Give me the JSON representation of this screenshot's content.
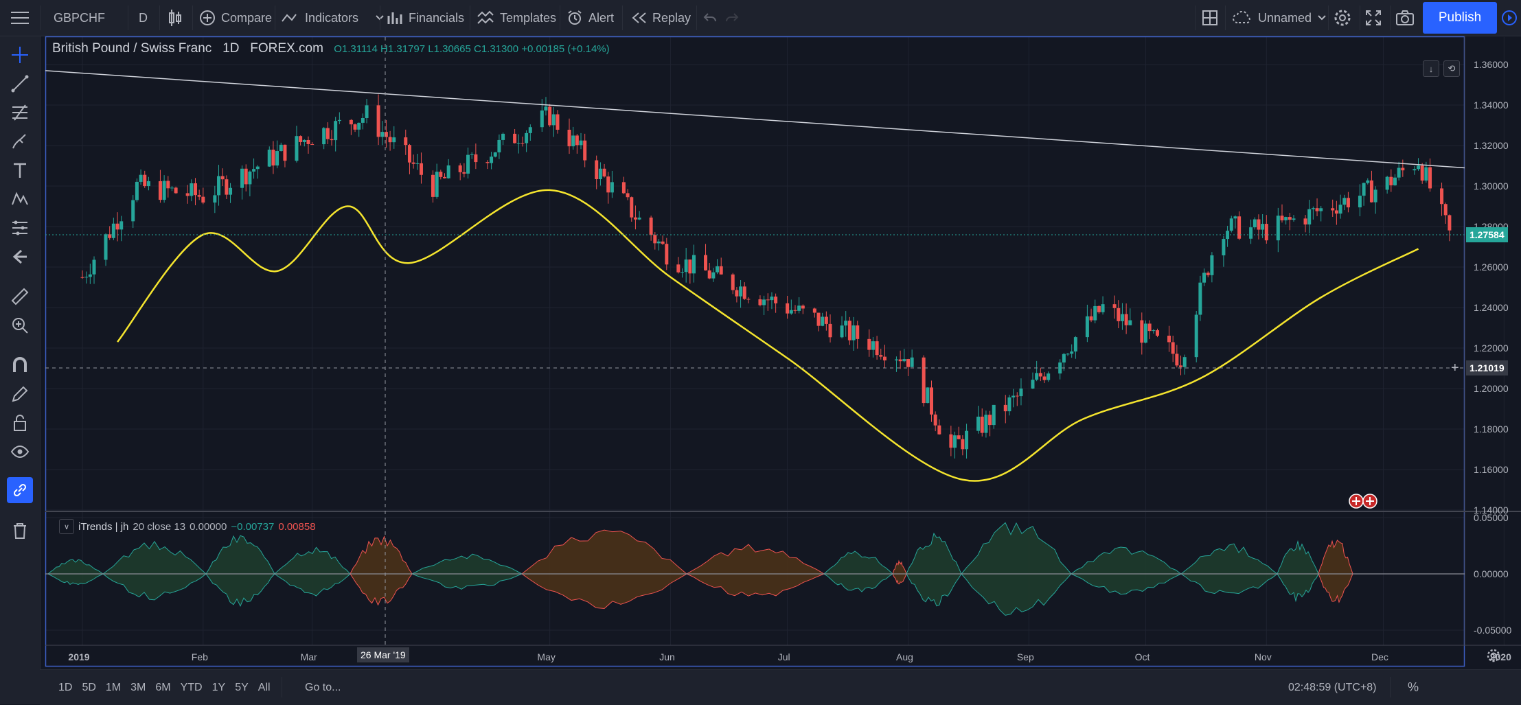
{
  "toolbar": {
    "symbol": "GBPCHF",
    "interval": "D",
    "compare": "Compare",
    "indicators": "Indicators",
    "financials": "Financials",
    "templates": "Templates",
    "alert": "Alert",
    "replay": "Replay",
    "layout_name": "Unnamed",
    "publish": "Publish"
  },
  "legend": {
    "title": "British Pound / Swiss Franc",
    "interval": "1D",
    "exchange": "FOREX.com",
    "ohlc": "O1.31114  H1.31797  L1.30665  C1.31300  +0.00185 (+0.14%)"
  },
  "indicator_legend": {
    "name": "iTrends | jh",
    "params": "20 close 13",
    "v1": "0.00000",
    "v2": "−0.00737",
    "v3": "0.00858"
  },
  "price_axis": {
    "labels": [
      "1.36000",
      "1.34000",
      "1.32000",
      "1.30000",
      "1.28000",
      "1.26000",
      "1.24000",
      "1.22000",
      "1.20000",
      "1.18000",
      "1.16000",
      "1.14000"
    ],
    "current_price": "1.27584",
    "crosshair_price": "1.21019"
  },
  "osc_axis": {
    "labels": [
      "0.05000",
      "0.00000",
      "-0.05000"
    ]
  },
  "time_axis": {
    "labels": [
      "2019",
      "Feb",
      "Mar",
      "May",
      "Jun",
      "Jul",
      "Aug",
      "Sep",
      "Oct",
      "Nov",
      "Dec",
      "2020"
    ],
    "crosshair_date": "26 Mar '19"
  },
  "bottom": {
    "ranges": [
      "1D",
      "5D",
      "1M",
      "3M",
      "6M",
      "YTD",
      "1Y",
      "5Y",
      "All"
    ],
    "goto": "Go to...",
    "clock": "02:48:59 (UTC+8)",
    "percent": "%"
  },
  "chart_data": {
    "type": "candlestick",
    "title": "British Pound / Swiss Franc",
    "ylim": [
      1.14,
      1.37
    ],
    "x_range": [
      "2019-01-01",
      "2019-12-20"
    ],
    "close_path_monthly": [
      {
        "x": "2019-01-01",
        "close": 1.255
      },
      {
        "x": "2019-01-15",
        "close": 1.3
      },
      {
        "x": "2019-02-01",
        "close": 1.295
      },
      {
        "x": "2019-03-01",
        "close": 1.325
      },
      {
        "x": "2019-03-15",
        "close": 1.335
      },
      {
        "x": "2019-04-01",
        "close": 1.3
      },
      {
        "x": "2019-05-01",
        "close": 1.335
      },
      {
        "x": "2019-06-01",
        "close": 1.265
      },
      {
        "x": "2019-07-01",
        "close": 1.24
      },
      {
        "x": "2019-08-01",
        "close": 1.215
      },
      {
        "x": "2019-08-12",
        "close": 1.17
      },
      {
        "x": "2019-09-01",
        "close": 1.2
      },
      {
        "x": "2019-09-20",
        "close": 1.24
      },
      {
        "x": "2019-10-10",
        "close": 1.215
      },
      {
        "x": "2019-10-20",
        "close": 1.28
      },
      {
        "x": "2019-11-01",
        "close": 1.278
      },
      {
        "x": "2019-12-01",
        "close": 1.3
      },
      {
        "x": "2019-12-10",
        "close": 1.313
      },
      {
        "x": "2019-12-18",
        "close": 1.276
      }
    ],
    "trendline": [
      {
        "x": "2019-01-01",
        "y": 1.357
      },
      {
        "x": "2019-12-31",
        "y": 1.309
      }
    ],
    "yellow_ma": [
      {
        "x": "2019-01-10",
        "y": 1.223
      },
      {
        "x": "2019-02-01",
        "y": 1.276
      },
      {
        "x": "2019-02-20",
        "y": 1.258
      },
      {
        "x": "2019-03-10",
        "y": 1.29
      },
      {
        "x": "2019-03-26",
        "y": 1.262
      },
      {
        "x": "2019-05-01",
        "y": 1.298
      },
      {
        "x": "2019-06-01",
        "y": 1.255
      },
      {
        "x": "2019-07-01",
        "y": 1.215
      },
      {
        "x": "2019-08-15",
        "y": 1.155
      },
      {
        "x": "2019-09-15",
        "y": 1.185
      },
      {
        "x": "2019-10-15",
        "y": 1.205
      },
      {
        "x": "2019-11-15",
        "y": 1.245
      },
      {
        "x": "2019-12-10",
        "y": 1.269
      }
    ]
  },
  "colors": {
    "up": "#26a69a",
    "down": "#ef5350",
    "ma": "#ffeb3b",
    "accent": "#2962ff"
  }
}
